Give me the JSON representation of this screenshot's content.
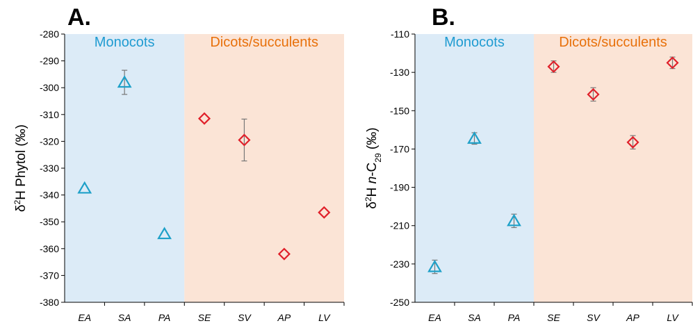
{
  "chart_data": [
    {
      "type": "scatter",
      "panel_label": "A.",
      "ylabel": {
        "prefix": "δ",
        "sup": "2",
        "rest": "H Phytol (‰)"
      },
      "ylim": [
        -380,
        -280
      ],
      "yticks": [
        -280,
        -290,
        -300,
        -310,
        -320,
        -330,
        -340,
        -350,
        -360,
        -370,
        -380
      ],
      "categories": [
        "EA",
        "SA",
        "PA",
        "SE",
        "SV",
        "AP",
        "LV"
      ],
      "grid": false,
      "regions": [
        {
          "label": "Monocots",
          "from": "EA",
          "to": "PA",
          "fill": "#dcebf7",
          "text_color": "#1f9bd1"
        },
        {
          "label": "Dicots/succulents",
          "from": "SE",
          "to": "LV",
          "fill": "#fbe4d6",
          "text_color": "#e8700a"
        }
      ],
      "series": [
        {
          "marker": "triangle",
          "color": "#1ea0c8",
          "categories": [
            "EA",
            "SA",
            "PA"
          ],
          "values": [
            -337.5,
            -298.0,
            -354.5
          ],
          "errors": [
            0.0,
            4.5,
            0.0
          ]
        },
        {
          "marker": "diamond",
          "color": "#e0202a",
          "categories": [
            "SE",
            "SV",
            "AP",
            "LV"
          ],
          "values": [
            -311.5,
            -319.5,
            -362.0,
            -346.5
          ],
          "errors": [
            0.0,
            7.8,
            0.0,
            0.0
          ]
        }
      ]
    },
    {
      "type": "scatter",
      "panel_label": "B.",
      "ylabel": {
        "prefix": "δ",
        "sup": "2",
        "rest": "H ",
        "italic": "n",
        "rest2": "-C",
        "sub": "29",
        "rest3": " (‰)"
      },
      "ylim": [
        -250,
        -110
      ],
      "yticks": [
        -110,
        -130,
        -150,
        -170,
        -190,
        -210,
        -230,
        -250
      ],
      "categories": [
        "EA",
        "SA",
        "PA",
        "SE",
        "SV",
        "AP",
        "LV"
      ],
      "grid": false,
      "regions": [
        {
          "label": "Monocots",
          "from": "EA",
          "to": "PA",
          "fill": "#dcebf7",
          "text_color": "#1f9bd1"
        },
        {
          "label": "Dicots/succulents",
          "from": "SE",
          "to": "LV",
          "fill": "#fbe4d6",
          "text_color": "#e8700a"
        }
      ],
      "series": [
        {
          "marker": "triangle",
          "color": "#1ea0c8",
          "categories": [
            "EA",
            "SA",
            "PA"
          ],
          "values": [
            -231.5,
            -164.5,
            -207.5
          ],
          "errors": [
            3.5,
            3.0,
            3.5
          ]
        },
        {
          "marker": "diamond",
          "color": "#e0202a",
          "categories": [
            "SE",
            "SV",
            "AP",
            "LV"
          ],
          "values": [
            -127.0,
            -141.5,
            -166.5,
            -125.0
          ],
          "errors": [
            3.0,
            3.5,
            3.5,
            3.0
          ]
        }
      ]
    }
  ]
}
